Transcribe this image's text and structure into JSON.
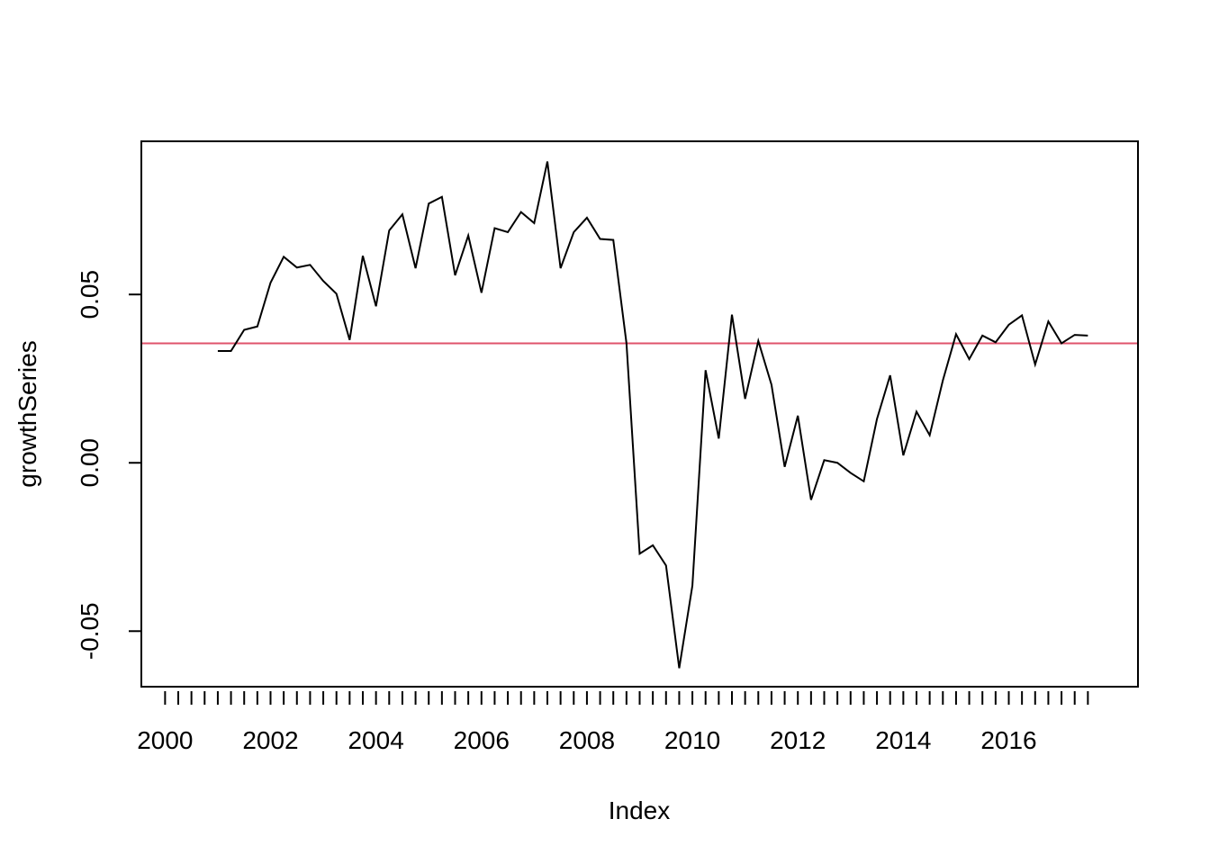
{
  "chart_data": {
    "type": "line",
    "title": "",
    "xlabel": "Index",
    "ylabel": "growthSeries",
    "x_tick_labels": [
      "2000",
      "2002",
      "2004",
      "2006",
      "2008",
      "2010",
      "2012",
      "2014",
      "2016"
    ],
    "x_tick_values": [
      2000,
      2002,
      2004,
      2006,
      2008,
      2010,
      2012,
      2014,
      2016
    ],
    "y_tick_labels": [
      "-0.05",
      "0.00",
      "0.05"
    ],
    "y_tick_values": [
      -0.05,
      0.0,
      0.05
    ],
    "xlim": [
      1999.55,
      2018.45
    ],
    "ylim": [
      -0.0665,
      0.0955
    ],
    "minor_x_ticks": {
      "start": 2000.0,
      "end": 2017.5,
      "step": 0.25
    },
    "grid": false,
    "reference_line": {
      "y": 0.0355,
      "color": "#DF536B"
    },
    "line_color": "#000000",
    "series": [
      {
        "x": [
          2001.0,
          2001.25,
          2001.5,
          2001.75,
          2002.0,
          2002.25,
          2002.5,
          2002.75,
          2003.0,
          2003.25,
          2003.5,
          2003.75,
          2004.0,
          2004.25,
          2004.5,
          2004.75,
          2005.0,
          2005.25,
          2005.5,
          2005.75,
          2006.0,
          2006.25,
          2006.5,
          2006.75,
          2007.0,
          2007.25,
          2007.5,
          2007.75,
          2008.0,
          2008.25,
          2008.5,
          2008.75,
          2009.0,
          2009.25,
          2009.5,
          2009.75,
          2010.0,
          2010.25,
          2010.5,
          2010.75,
          2011.0,
          2011.25,
          2011.5,
          2011.75,
          2012.0,
          2012.25,
          2012.5,
          2012.75,
          2013.0,
          2013.25,
          2013.5,
          2013.75,
          2014.0,
          2014.25,
          2014.5,
          2014.75,
          2015.0,
          2015.25,
          2015.5,
          2015.75,
          2016.0,
          2016.25,
          2016.5,
          2016.75,
          2017.0,
          2017.25,
          2017.5
        ],
        "values": [
          0.0332,
          0.0332,
          0.0395,
          0.0405,
          0.0535,
          0.0612,
          0.058,
          0.0588,
          0.054,
          0.0502,
          0.0365,
          0.0615,
          0.0465,
          0.069,
          0.0738,
          0.0578,
          0.077,
          0.079,
          0.0557,
          0.0675,
          0.0505,
          0.0697,
          0.0685,
          0.0745,
          0.0712,
          0.0895,
          0.0578,
          0.0685,
          0.0728,
          0.0665,
          0.0662,
          0.0355,
          -0.027,
          -0.0245,
          -0.0305,
          -0.061,
          -0.0365,
          0.0275,
          0.0072,
          0.044,
          0.019,
          0.0362,
          0.0232,
          -0.0012,
          0.014,
          -0.011,
          0.0008,
          0.0,
          -0.003,
          -0.0055,
          0.013,
          0.026,
          0.0022,
          0.0152,
          0.0082,
          0.0245,
          0.0382,
          0.0308,
          0.0378,
          0.0358,
          0.041,
          0.0438,
          0.0292,
          0.042,
          0.0355,
          0.038,
          0.0378
        ]
      }
    ]
  }
}
